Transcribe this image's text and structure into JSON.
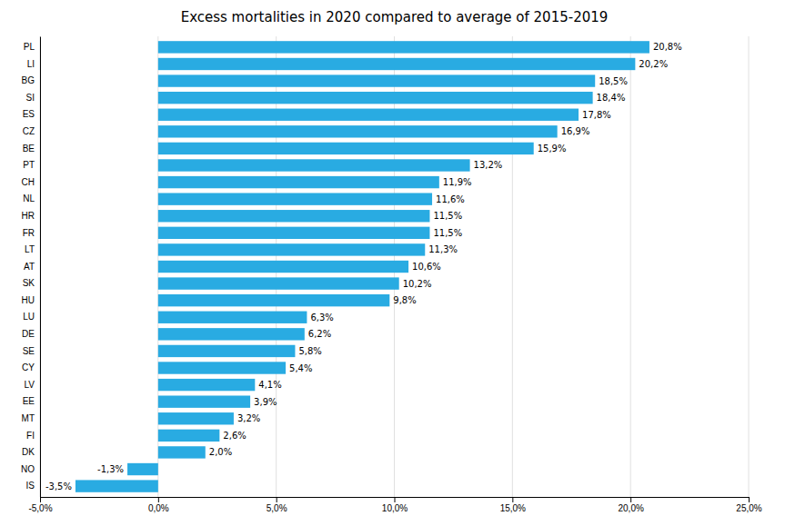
{
  "chart_data": {
    "type": "bar",
    "orientation": "horizontal",
    "title": "Excess mortalities in 2020 compared to average of 2015-2019",
    "categories": [
      "PL",
      "LI",
      "BG",
      "SI",
      "ES",
      "CZ",
      "BE",
      "PT",
      "CH",
      "NL",
      "HR",
      "FR",
      "LT",
      "AT",
      "SK",
      "HU",
      "LU",
      "DE",
      "SE",
      "CY",
      "LV",
      "EE",
      "MT",
      "FI",
      "DK",
      "NO",
      "IS"
    ],
    "values": [
      20.8,
      20.2,
      18.5,
      18.4,
      17.8,
      16.9,
      15.9,
      13.2,
      11.9,
      11.6,
      11.5,
      11.5,
      11.3,
      10.6,
      10.2,
      9.8,
      6.3,
      6.2,
      5.8,
      5.4,
      4.1,
      3.9,
      3.2,
      2.6,
      2.0,
      -1.3,
      -3.5
    ],
    "value_labels": [
      "20,8%",
      "20,2%",
      "18,5%",
      "18,4%",
      "17,8%",
      "16,9%",
      "15,9%",
      "13,2%",
      "11,9%",
      "11,6%",
      "11,5%",
      "11,5%",
      "11,3%",
      "10,6%",
      "10,2%",
      "9,8%",
      "6,3%",
      "6,2%",
      "5,8%",
      "5,4%",
      "4,1%",
      "3,9%",
      "3,2%",
      "2,6%",
      "2,0%",
      "-1,3%",
      "-3,5%"
    ],
    "data_labels": true,
    "color": "#29ABE2",
    "xlim": [
      -5,
      25
    ],
    "xticks": [
      {
        "value": -5,
        "label": "-5,0%"
      },
      {
        "value": 0,
        "label": "0,0%"
      },
      {
        "value": 5,
        "label": "5,0%"
      },
      {
        "value": 10,
        "label": "10,0%"
      },
      {
        "value": 15,
        "label": "15,0%"
      },
      {
        "value": 20,
        "label": "20,0%"
      },
      {
        "value": 25,
        "label": "25,0%"
      }
    ],
    "grid": true
  }
}
